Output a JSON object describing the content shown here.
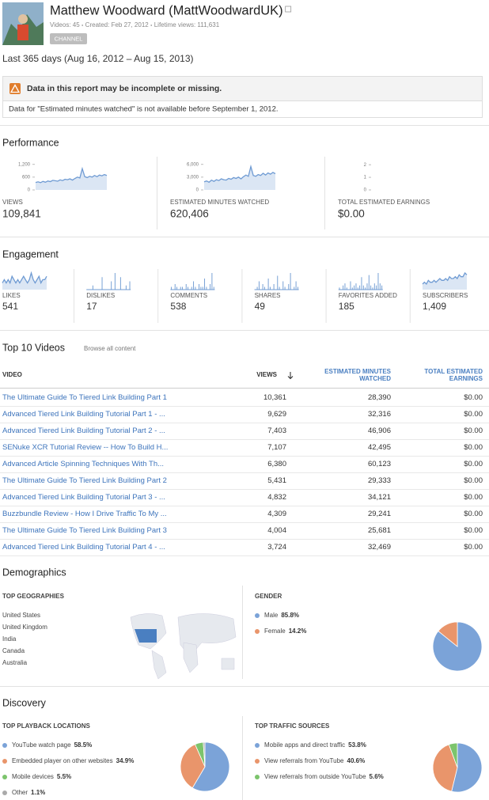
{
  "header": {
    "name": "Matthew Woodward (MattWoodwardUK)",
    "meta": [
      "Videos: 45",
      "Created: Feb 27, 2012",
      "Lifetime views: 111,631"
    ],
    "badge": "CHANNEL"
  },
  "date_range": "Last 365 days (Aug 16, 2012 – Aug 15, 2013)",
  "warning": {
    "title": "Data in this report may be incomplete or missing.",
    "message": "Data for \"Estimated minutes watched\" is not available before September 1, 2012."
  },
  "performance": {
    "title": "Performance",
    "metrics": [
      {
        "label": "VIEWS",
        "value": "109,841",
        "chart": {
          "type": "area",
          "color": "#6f9bd3",
          "ylim": [
            0,
            1300
          ],
          "yticks": [
            0,
            600,
            {
              "value": 1200,
              "label": "1,200"
            }
          ],
          "values": [
            350,
            380,
            340,
            400,
            360,
            420,
            390,
            450,
            430,
            410,
            470,
            440,
            500,
            480,
            520,
            460,
            540,
            600,
            560,
            1000,
            620,
            580,
            640,
            600,
            680,
            620,
            700,
            660,
            720,
            680
          ]
        }
      },
      {
        "label": "ESTIMATED MINUTES WATCHED",
        "value": "620,406",
        "chart": {
          "type": "area",
          "color": "#6f9bd3",
          "ylim": [
            0,
            6500
          ],
          "yticks": [
            0,
            {
              "value": 3000,
              "label": "3,000"
            },
            {
              "value": 6000,
              "label": "6,000"
            }
          ],
          "values": [
            1900,
            2100,
            1800,
            2300,
            2000,
            2400,
            2200,
            2600,
            2400,
            2300,
            2700,
            2500,
            2900,
            2700,
            3000,
            2600,
            3100,
            3500,
            3200,
            5500,
            3400,
            3200,
            3600,
            3400,
            3900,
            3500,
            4000,
            3700,
            4100,
            3800
          ]
        }
      },
      {
        "label": "TOTAL ESTIMATED EARNINGS",
        "value": "$0.00",
        "chart": {
          "type": "axis",
          "ylim": [
            0,
            2.2
          ],
          "yticks": [
            0,
            1,
            2
          ]
        }
      }
    ]
  },
  "engagement": {
    "title": "Engagement",
    "metrics": [
      {
        "label": "LIKES",
        "value": "541",
        "chart": {
          "type": "area",
          "color": "#6f9bd3",
          "values": [
            2,
            3,
            2,
            3,
            2,
            4,
            3,
            2,
            3,
            2,
            3,
            4,
            3,
            2,
            3,
            5,
            3,
            2,
            3,
            4,
            2,
            3,
            3,
            4
          ]
        }
      },
      {
        "label": "DISLIKES",
        "value": "17",
        "chart": {
          "type": "bar",
          "color": "#6f9bd3",
          "values": [
            0,
            0,
            0,
            1,
            0,
            0,
            0,
            0,
            3,
            0,
            0,
            0,
            0,
            2,
            0,
            4,
            0,
            0,
            3,
            0,
            0,
            1,
            0,
            2
          ]
        }
      },
      {
        "label": "COMMENTS",
        "value": "538",
        "chart": {
          "type": "bar",
          "color": "#6f9bd3",
          "values": [
            1,
            0,
            2,
            1,
            0,
            1,
            1,
            0,
            2,
            1,
            0,
            1,
            3,
            1,
            0,
            2,
            1,
            1,
            4,
            1,
            0,
            2,
            6,
            1
          ]
        }
      },
      {
        "label": "SHARES",
        "value": "49",
        "chart": {
          "type": "bar",
          "color": "#6f9bd3",
          "values": [
            0,
            1,
            3,
            0,
            2,
            1,
            0,
            4,
            1,
            0,
            2,
            0,
            5,
            1,
            0,
            3,
            1,
            0,
            2,
            6,
            0,
            1,
            3,
            1
          ]
        }
      },
      {
        "label": "FAVORITES ADDED",
        "value": "185",
        "chart": {
          "type": "bar",
          "color": "#6f9bd3",
          "values": [
            1,
            0,
            2,
            3,
            1,
            0,
            4,
            1,
            2,
            3,
            1,
            2,
            6,
            2,
            1,
            3,
            7,
            2,
            1,
            3,
            2,
            8,
            3,
            2
          ]
        }
      },
      {
        "label": "SUBSCRIBERS",
        "value": "1,409",
        "chart": {
          "type": "area",
          "color": "#6f9bd3",
          "values": [
            3,
            4,
            3,
            5,
            4,
            4,
            5,
            4,
            5,
            6,
            5,
            5,
            6,
            5,
            7,
            6,
            6,
            7,
            6,
            8,
            7,
            7,
            9,
            8
          ]
        }
      }
    ]
  },
  "top_videos": {
    "title": "Top 10 Videos",
    "browse": "Browse all content",
    "columns": [
      [
        "VIDEO"
      ],
      [
        "VIEWS"
      ],
      [
        "ESTIMATED MINUTES",
        "WATCHED"
      ],
      [
        "TOTAL ESTIMATED",
        "EARNINGS"
      ]
    ],
    "rows": [
      [
        "The Ultimate Guide To Tiered Link Building Part 1",
        "10,361",
        "28,390",
        "$0.00"
      ],
      [
        "Advanced Tiered Link Building Tutorial Part 1 - ...",
        "9,629",
        "32,316",
        "$0.00"
      ],
      [
        "Advanced Tiered Link Building Tutorial Part 2 - ...",
        "7,403",
        "46,906",
        "$0.00"
      ],
      [
        "SENuke XCR Tutorial Review -- How To Build H...",
        "7,107",
        "42,495",
        "$0.00"
      ],
      [
        "Advanced Article Spinning Techniques With Th...",
        "6,380",
        "60,123",
        "$0.00"
      ],
      [
        "The Ultimate Guide To Tiered Link Building Part 2",
        "5,431",
        "29,333",
        "$0.00"
      ],
      [
        "Advanced Tiered Link Building Tutorial Part 3 - ...",
        "4,832",
        "34,121",
        "$0.00"
      ],
      [
        "Buzzbundle Review - How I Drive Traffic To My ...",
        "4,309",
        "29,241",
        "$0.00"
      ],
      [
        "The Ultimate Guide To Tiered Link Building Part 3",
        "4,004",
        "25,681",
        "$0.00"
      ],
      [
        "Advanced Tiered Link Building Tutorial Part 4 - ...",
        "3,724",
        "32,469",
        "$0.00"
      ]
    ]
  },
  "demographics": {
    "title": "Demographics",
    "geographies": {
      "title": "TOP GEOGRAPHIES",
      "items": [
        "United States",
        "United Kingdom",
        "India",
        "Canada",
        "Australia"
      ]
    },
    "gender": {
      "title": "GENDER",
      "type": "pie",
      "series": [
        {
          "name": "Male",
          "value": 85.8,
          "value_label": "85.8%",
          "color": "#7ba3d8"
        },
        {
          "name": "Female",
          "value": 14.2,
          "value_label": "14.2%",
          "color": "#e9956b"
        }
      ]
    }
  },
  "discovery": {
    "title": "Discovery",
    "playback": {
      "title": "TOP PLAYBACK LOCATIONS",
      "type": "pie",
      "series": [
        {
          "name": "YouTube watch page",
          "value": 58.5,
          "value_label": "58.5%",
          "color": "#7ba3d8"
        },
        {
          "name": "Embedded player on other websites",
          "value": 34.9,
          "value_label": "34.9%",
          "color": "#e9956b"
        },
        {
          "name": "Mobile devices",
          "value": 5.5,
          "value_label": "5.5%",
          "color": "#7cc46c"
        },
        {
          "name": "Other",
          "value": 1.1,
          "value_label": "1.1%",
          "color": "#aaaaaa"
        }
      ]
    },
    "traffic": {
      "title": "TOP TRAFFIC SOURCES",
      "type": "pie",
      "series": [
        {
          "name": "Mobile apps and direct traffic",
          "value": 53.8,
          "value_label": "53.8%",
          "color": "#7ba3d8"
        },
        {
          "name": "View referrals from YouTube",
          "value": 40.6,
          "value_label": "40.6%",
          "color": "#e9956b"
        },
        {
          "name": "View referrals from outside YouTube",
          "value": 5.6,
          "value_label": "5.6%",
          "color": "#7cc46c"
        }
      ]
    }
  }
}
